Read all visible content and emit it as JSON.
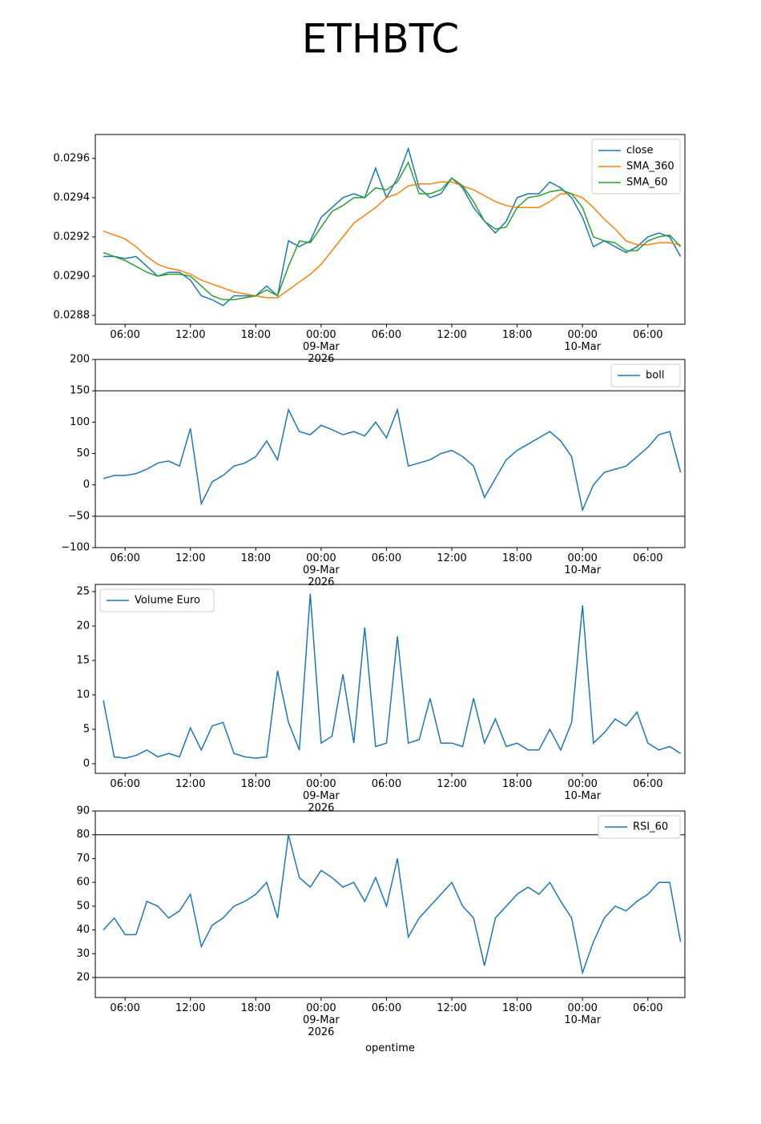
{
  "title": "ETHBTC",
  "chart_data": [
    {
      "type": "line",
      "legend": "upper right",
      "x": [
        "2026-03-08 04:00",
        "2026-03-08 05:00",
        "2026-03-08 06:00",
        "2026-03-08 07:00",
        "2026-03-08 08:00",
        "2026-03-08 09:00",
        "2026-03-08 10:00",
        "2026-03-08 11:00",
        "2026-03-08 12:00",
        "2026-03-08 13:00",
        "2026-03-08 14:00",
        "2026-03-08 15:00",
        "2026-03-08 16:00",
        "2026-03-08 17:00",
        "2026-03-08 18:00",
        "2026-03-08 19:00",
        "2026-03-08 20:00",
        "2026-03-08 21:00",
        "2026-03-08 22:00",
        "2026-03-08 23:00",
        "2026-03-09 00:00",
        "2026-03-09 01:00",
        "2026-03-09 02:00",
        "2026-03-09 03:00",
        "2026-03-09 04:00",
        "2026-03-09 05:00",
        "2026-03-09 06:00",
        "2026-03-09 07:00",
        "2026-03-09 08:00",
        "2026-03-09 09:00",
        "2026-03-09 10:00",
        "2026-03-09 11:00",
        "2026-03-09 12:00",
        "2026-03-09 13:00",
        "2026-03-09 14:00",
        "2026-03-09 15:00",
        "2026-03-09 16:00",
        "2026-03-09 17:00",
        "2026-03-09 18:00",
        "2026-03-09 19:00",
        "2026-03-09 20:00",
        "2026-03-09 21:00",
        "2026-03-09 22:00",
        "2026-03-09 23:00",
        "2026-03-10 00:00",
        "2026-03-10 01:00",
        "2026-03-10 02:00",
        "2026-03-10 03:00",
        "2026-03-10 04:00",
        "2026-03-10 05:00",
        "2026-03-10 06:00",
        "2026-03-10 07:00",
        "2026-03-10 08:00",
        "2026-03-10 09:00"
      ],
      "series": [
        {
          "name": "close",
          "color": "#1f77b4",
          "values": [
            0.0291,
            0.0291,
            0.02909,
            0.0291,
            0.02905,
            0.029,
            0.02902,
            0.02902,
            0.02898,
            0.0289,
            0.02888,
            0.02885,
            0.0289,
            0.0289,
            0.0289,
            0.02895,
            0.0289,
            0.02918,
            0.02915,
            0.02918,
            0.0293,
            0.02935,
            0.0294,
            0.02942,
            0.0294,
            0.02955,
            0.0294,
            0.0295,
            0.02965,
            0.02945,
            0.0294,
            0.02942,
            0.0295,
            0.02945,
            0.02935,
            0.02928,
            0.02922,
            0.02928,
            0.0294,
            0.02942,
            0.02942,
            0.02948,
            0.02945,
            0.0294,
            0.0293,
            0.02915,
            0.02918,
            0.02915,
            0.02912,
            0.02915,
            0.0292,
            0.02922,
            0.0292,
            0.0291
          ]
        },
        {
          "name": "SMA_360",
          "color": "#ff7f0e",
          "values": [
            0.02923,
            0.02921,
            0.02919,
            0.02915,
            0.0291,
            0.02906,
            0.02904,
            0.02903,
            0.02901,
            0.02898,
            0.02896,
            0.02894,
            0.02892,
            0.02891,
            0.0289,
            0.02889,
            0.02889,
            0.02893,
            0.02897,
            0.02901,
            0.02906,
            0.02913,
            0.0292,
            0.02927,
            0.02931,
            0.02935,
            0.0294,
            0.02942,
            0.02946,
            0.02947,
            0.02947,
            0.02948,
            0.02948,
            0.02946,
            0.02944,
            0.02941,
            0.02938,
            0.02936,
            0.02935,
            0.02935,
            0.02935,
            0.02938,
            0.02942,
            0.02942,
            0.0294,
            0.02935,
            0.02929,
            0.02924,
            0.02918,
            0.02916,
            0.02916,
            0.02917,
            0.02917,
            0.02916
          ]
        },
        {
          "name": "SMA_60",
          "color": "#2ca02c",
          "values": [
            0.02912,
            0.0291,
            0.02908,
            0.02905,
            0.02902,
            0.029,
            0.02901,
            0.02901,
            0.029,
            0.02895,
            0.0289,
            0.02888,
            0.02888,
            0.02889,
            0.0289,
            0.02893,
            0.0289,
            0.02905,
            0.02918,
            0.02917,
            0.02925,
            0.02933,
            0.02936,
            0.0294,
            0.0294,
            0.02945,
            0.02944,
            0.02948,
            0.02958,
            0.02942,
            0.02942,
            0.02944,
            0.0295,
            0.02946,
            0.02938,
            0.02928,
            0.02924,
            0.02925,
            0.02935,
            0.0294,
            0.02941,
            0.02943,
            0.02944,
            0.02942,
            0.02935,
            0.0292,
            0.02918,
            0.02917,
            0.02913,
            0.02913,
            0.02918,
            0.0292,
            0.02921,
            0.02915
          ]
        }
      ],
      "xlim": [
        "2026-03-08 03:16",
        "2026-03-10 09:24"
      ],
      "xticks": [
        {
          "value": "2026-03-08 06:00",
          "label": "06:00"
        },
        {
          "value": "2026-03-08 12:00",
          "label": "12:00"
        },
        {
          "value": "2026-03-08 18:00",
          "label": "18:00"
        },
        {
          "value": "2026-03-09 00:00",
          "label": "00:00\n09-Mar\n2026"
        },
        {
          "value": "2026-03-09 06:00",
          "label": "06:00"
        },
        {
          "value": "2026-03-09 12:00",
          "label": "12:00"
        },
        {
          "value": "2026-03-09 18:00",
          "label": "18:00"
        },
        {
          "value": "2026-03-10 00:00",
          "label": "00:00\n10-Mar"
        },
        {
          "value": "2026-03-10 06:00",
          "label": "06:00"
        }
      ],
      "ylim": [
        0.028755,
        0.029722
      ],
      "yticks": [
        0.0288,
        {
          "value": 0.029,
          "label": "0.0290"
        },
        0.0292,
        0.0294,
        0.0296
      ]
    },
    {
      "type": "line",
      "legend": "upper right",
      "x": [
        "2026-03-08 04:00",
        "2026-03-08 05:00",
        "2026-03-08 06:00",
        "2026-03-08 07:00",
        "2026-03-08 08:00",
        "2026-03-08 09:00",
        "2026-03-08 10:00",
        "2026-03-08 11:00",
        "2026-03-08 12:00",
        "2026-03-08 13:00",
        "2026-03-08 14:00",
        "2026-03-08 15:00",
        "2026-03-08 16:00",
        "2026-03-08 17:00",
        "2026-03-08 18:00",
        "2026-03-08 19:00",
        "2026-03-08 20:00",
        "2026-03-08 21:00",
        "2026-03-08 22:00",
        "2026-03-08 23:00",
        "2026-03-09 00:00",
        "2026-03-09 01:00",
        "2026-03-09 02:00",
        "2026-03-09 03:00",
        "2026-03-09 04:00",
        "2026-03-09 05:00",
        "2026-03-09 06:00",
        "2026-03-09 07:00",
        "2026-03-09 08:00",
        "2026-03-09 09:00",
        "2026-03-09 10:00",
        "2026-03-09 11:00",
        "2026-03-09 12:00",
        "2026-03-09 13:00",
        "2026-03-09 14:00",
        "2026-03-09 15:00",
        "2026-03-09 16:00",
        "2026-03-09 17:00",
        "2026-03-09 18:00",
        "2026-03-09 19:00",
        "2026-03-09 20:00",
        "2026-03-09 21:00",
        "2026-03-09 22:00",
        "2026-03-09 23:00",
        "2026-03-10 00:00",
        "2026-03-10 01:00",
        "2026-03-10 02:00",
        "2026-03-10 03:00",
        "2026-03-10 04:00",
        "2026-03-10 05:00",
        "2026-03-10 06:00",
        "2026-03-10 07:00",
        "2026-03-10 08:00",
        "2026-03-10 09:00"
      ],
      "series": [
        {
          "name": "boll",
          "color": "#1f77b4",
          "values": [
            10,
            15,
            15,
            18,
            25,
            35,
            38,
            30,
            90,
            -30,
            5,
            15,
            30,
            35,
            45,
            70,
            40,
            120,
            85,
            80,
            95,
            88,
            80,
            85,
            78,
            100,
            75,
            120,
            30,
            35,
            40,
            50,
            55,
            45,
            30,
            -20,
            10,
            40,
            55,
            65,
            75,
            85,
            70,
            45,
            -40,
            0,
            20,
            25,
            30,
            45,
            60,
            80,
            85,
            20
          ]
        }
      ],
      "hlines": [
        150,
        -50
      ],
      "xlim": [
        "2026-03-08 03:16",
        "2026-03-10 09:24"
      ],
      "xticks": [
        {
          "value": "2026-03-08 06:00",
          "label": "06:00"
        },
        {
          "value": "2026-03-08 12:00",
          "label": "12:00"
        },
        {
          "value": "2026-03-08 18:00",
          "label": "18:00"
        },
        {
          "value": "2026-03-09 00:00",
          "label": "00:00\n09-Mar\n2026"
        },
        {
          "value": "2026-03-09 06:00",
          "label": "06:00"
        },
        {
          "value": "2026-03-09 12:00",
          "label": "12:00"
        },
        {
          "value": "2026-03-09 18:00",
          "label": "18:00"
        },
        {
          "value": "2026-03-10 00:00",
          "label": "00:00\n10-Mar"
        },
        {
          "value": "2026-03-10 06:00",
          "label": "06:00"
        }
      ],
      "ylim": [
        -100,
        200
      ],
      "yticks": [
        {
          "value": -100,
          "label": "−100"
        },
        {
          "value": -50,
          "label": "−50"
        },
        0,
        50,
        100,
        150,
        200
      ]
    },
    {
      "type": "line",
      "legend": "upper left",
      "x": [
        "2026-03-08 04:00",
        "2026-03-08 05:00",
        "2026-03-08 06:00",
        "2026-03-08 07:00",
        "2026-03-08 08:00",
        "2026-03-08 09:00",
        "2026-03-08 10:00",
        "2026-03-08 11:00",
        "2026-03-08 12:00",
        "2026-03-08 13:00",
        "2026-03-08 14:00",
        "2026-03-08 15:00",
        "2026-03-08 16:00",
        "2026-03-08 17:00",
        "2026-03-08 18:00",
        "2026-03-08 19:00",
        "2026-03-08 20:00",
        "2026-03-08 21:00",
        "2026-03-08 22:00",
        "2026-03-08 23:00",
        "2026-03-09 00:00",
        "2026-03-09 01:00",
        "2026-03-09 02:00",
        "2026-03-09 03:00",
        "2026-03-09 04:00",
        "2026-03-09 05:00",
        "2026-03-09 06:00",
        "2026-03-09 07:00",
        "2026-03-09 08:00",
        "2026-03-09 09:00",
        "2026-03-09 10:00",
        "2026-03-09 11:00",
        "2026-03-09 12:00",
        "2026-03-09 13:00",
        "2026-03-09 14:00",
        "2026-03-09 15:00",
        "2026-03-09 16:00",
        "2026-03-09 17:00",
        "2026-03-09 18:00",
        "2026-03-09 19:00",
        "2026-03-09 20:00",
        "2026-03-09 21:00",
        "2026-03-09 22:00",
        "2026-03-09 23:00",
        "2026-03-10 00:00",
        "2026-03-10 01:00",
        "2026-03-10 02:00",
        "2026-03-10 03:00",
        "2026-03-10 04:00",
        "2026-03-10 05:00",
        "2026-03-10 06:00",
        "2026-03-10 07:00",
        "2026-03-10 08:00",
        "2026-03-10 09:00"
      ],
      "series": [
        {
          "name": "Volume Euro",
          "color": "#1f77b4",
          "values": [
            9.2,
            1,
            0.8,
            1.2,
            2,
            1,
            1.5,
            1,
            5.2,
            2,
            5.5,
            6,
            1.5,
            1,
            0.8,
            1,
            13.5,
            6,
            2,
            24.7,
            3,
            4,
            13,
            3,
            19.8,
            2.5,
            3,
            18.5,
            3,
            3.5,
            9.5,
            3,
            3,
            2.5,
            9.5,
            3,
            6.5,
            2.5,
            3,
            2,
            2,
            5,
            2,
            6,
            23,
            3,
            4.5,
            6.5,
            5.5,
            7.5,
            3,
            2,
            2.5,
            1.5
          ]
        }
      ],
      "xlim": [
        "2026-03-08 03:16",
        "2026-03-10 09:24"
      ],
      "xticks": [
        {
          "value": "2026-03-08 06:00",
          "label": "06:00"
        },
        {
          "value": "2026-03-08 12:00",
          "label": "12:00"
        },
        {
          "value": "2026-03-08 18:00",
          "label": "18:00"
        },
        {
          "value": "2026-03-09 00:00",
          "label": "00:00\n09-Mar\n2026"
        },
        {
          "value": "2026-03-09 06:00",
          "label": "06:00"
        },
        {
          "value": "2026-03-09 12:00",
          "label": "12:00"
        },
        {
          "value": "2026-03-09 18:00",
          "label": "18:00"
        },
        {
          "value": "2026-03-10 00:00",
          "label": "00:00\n10-Mar"
        },
        {
          "value": "2026-03-10 06:00",
          "label": "06:00"
        }
      ],
      "ylim": [
        -1.4,
        26.05
      ],
      "yticks": [
        0,
        5,
        10,
        15,
        20,
        25
      ]
    },
    {
      "type": "line",
      "legend": "upper right",
      "xlabel": "opentime",
      "x": [
        "2026-03-08 04:00",
        "2026-03-08 05:00",
        "2026-03-08 06:00",
        "2026-03-08 07:00",
        "2026-03-08 08:00",
        "2026-03-08 09:00",
        "2026-03-08 10:00",
        "2026-03-08 11:00",
        "2026-03-08 12:00",
        "2026-03-08 13:00",
        "2026-03-08 14:00",
        "2026-03-08 15:00",
        "2026-03-08 16:00",
        "2026-03-08 17:00",
        "2026-03-08 18:00",
        "2026-03-08 19:00",
        "2026-03-08 20:00",
        "2026-03-08 21:00",
        "2026-03-08 22:00",
        "2026-03-08 23:00",
        "2026-03-09 00:00",
        "2026-03-09 01:00",
        "2026-03-09 02:00",
        "2026-03-09 03:00",
        "2026-03-09 04:00",
        "2026-03-09 05:00",
        "2026-03-09 06:00",
        "2026-03-09 07:00",
        "2026-03-09 08:00",
        "2026-03-09 09:00",
        "2026-03-09 10:00",
        "2026-03-09 11:00",
        "2026-03-09 12:00",
        "2026-03-09 13:00",
        "2026-03-09 14:00",
        "2026-03-09 15:00",
        "2026-03-09 16:00",
        "2026-03-09 17:00",
        "2026-03-09 18:00",
        "2026-03-09 19:00",
        "2026-03-09 20:00",
        "2026-03-09 21:00",
        "2026-03-09 22:00",
        "2026-03-09 23:00",
        "2026-03-10 00:00",
        "2026-03-10 01:00",
        "2026-03-10 02:00",
        "2026-03-10 03:00",
        "2026-03-10 04:00",
        "2026-03-10 05:00",
        "2026-03-10 06:00",
        "2026-03-10 07:00",
        "2026-03-10 08:00",
        "2026-03-10 09:00"
      ],
      "series": [
        {
          "name": "RSI_60",
          "color": "#1f77b4",
          "values": [
            40,
            45,
            38,
            38,
            52,
            50,
            45,
            48,
            55,
            33,
            42,
            45,
            50,
            52,
            55,
            60,
            45,
            80,
            62,
            58,
            65,
            62,
            58,
            60,
            52,
            62,
            50,
            70,
            37,
            45,
            50,
            55,
            60,
            50,
            45,
            25,
            45,
            50,
            55,
            58,
            55,
            60,
            52,
            45,
            22,
            35,
            45,
            50,
            48,
            52,
            55,
            60,
            60,
            35
          ]
        }
      ],
      "hlines": [
        80,
        20
      ],
      "xlim": [
        "2026-03-08 03:16",
        "2026-03-10 09:24"
      ],
      "xticks": [
        {
          "value": "2026-03-08 06:00",
          "label": "06:00"
        },
        {
          "value": "2026-03-08 12:00",
          "label": "12:00"
        },
        {
          "value": "2026-03-08 18:00",
          "label": "18:00"
        },
        {
          "value": "2026-03-09 00:00",
          "label": "00:00\n09-Mar\n2026"
        },
        {
          "value": "2026-03-09 06:00",
          "label": "06:00"
        },
        {
          "value": "2026-03-09 12:00",
          "label": "12:00"
        },
        {
          "value": "2026-03-09 18:00",
          "label": "18:00"
        },
        {
          "value": "2026-03-10 00:00",
          "label": "00:00\n10-Mar"
        },
        {
          "value": "2026-03-10 06:00",
          "label": "06:00"
        }
      ],
      "ylim": [
        11.6,
        90
      ],
      "yticks": [
        20,
        30,
        40,
        50,
        60,
        70,
        80,
        90
      ]
    }
  ]
}
